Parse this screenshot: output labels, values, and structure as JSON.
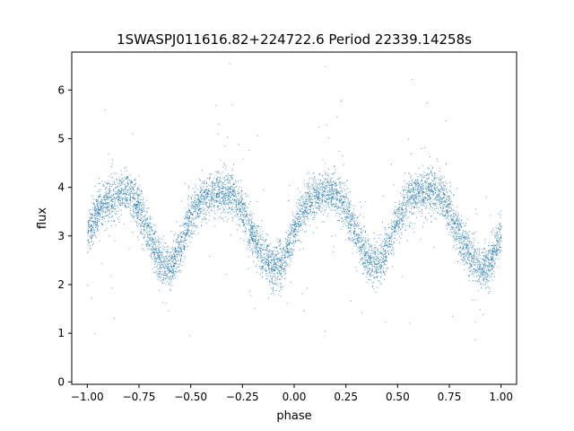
{
  "chart_data": {
    "type": "scatter",
    "title": "1SWASPJ011616.82+224722.6 Period 22339.14258s",
    "xlabel": "phase",
    "ylabel": "flux",
    "xlim": [
      -1.075,
      1.075
    ],
    "ylim": [
      -0.05,
      6.78
    ],
    "grid": false,
    "point_color": "#1f77b4",
    "x_ticks": [
      {
        "value": -1.0,
        "label": "−1.00"
      },
      {
        "value": -0.75,
        "label": "−0.75"
      },
      {
        "value": -0.5,
        "label": "−0.50"
      },
      {
        "value": -0.25,
        "label": "−0.25"
      },
      {
        "value": 0.0,
        "label": "0.00"
      },
      {
        "value": 0.25,
        "label": "0.25"
      },
      {
        "value": 0.5,
        "label": "0.50"
      },
      {
        "value": 0.75,
        "label": "0.75"
      },
      {
        "value": 1.0,
        "label": "1.00"
      }
    ],
    "y_ticks": [
      {
        "value": 0,
        "label": "0"
      },
      {
        "value": 1,
        "label": "1"
      },
      {
        "value": 2,
        "label": "2"
      },
      {
        "value": 3,
        "label": "3"
      },
      {
        "value": 4,
        "label": "4"
      },
      {
        "value": 5,
        "label": "5"
      },
      {
        "value": 6,
        "label": "6"
      }
    ],
    "series": [
      {
        "phase": [
          -1.0,
          -0.95,
          -0.9,
          -0.85,
          -0.8,
          -0.75,
          -0.7,
          -0.65,
          -0.6,
          -0.55,
          -0.5,
          -0.45,
          -0.4,
          -0.35,
          -0.3,
          -0.25,
          -0.2,
          -0.15,
          -0.1,
          -0.05,
          0.0,
          0.05,
          0.1,
          0.15,
          0.2,
          0.25,
          0.3,
          0.35,
          0.4,
          0.45,
          0.5,
          0.55,
          0.6,
          0.65,
          0.7,
          0.75,
          0.8,
          0.85,
          0.9,
          0.95,
          1.0
        ],
        "flux": [
          3.0,
          3.55,
          3.75,
          3.85,
          3.9,
          3.6,
          3.0,
          2.5,
          2.35,
          2.8,
          3.4,
          3.75,
          3.85,
          3.95,
          3.85,
          3.5,
          3.0,
          2.6,
          2.35,
          2.5,
          3.1,
          3.6,
          3.8,
          3.9,
          3.85,
          3.6,
          3.05,
          2.55,
          2.4,
          2.75,
          3.35,
          3.75,
          3.85,
          3.95,
          3.85,
          3.5,
          3.0,
          2.6,
          2.35,
          2.5,
          3.1
        ]
      }
    ]
  }
}
